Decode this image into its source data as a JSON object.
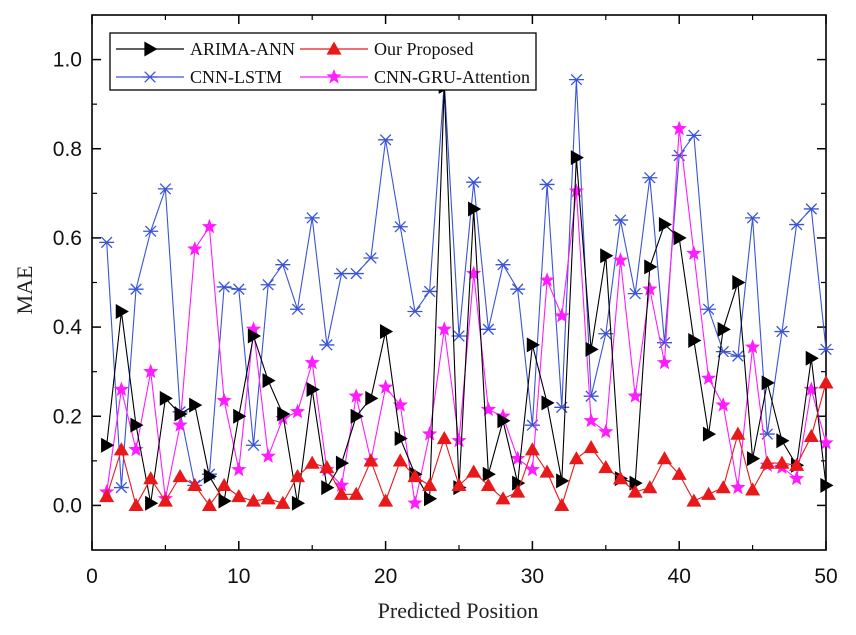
{
  "chart_data": {
    "type": "line",
    "title": "",
    "xlabel": "Predicted Position",
    "ylabel": "MAE",
    "xlim": [
      0,
      50
    ],
    "ylim": [
      -0.1,
      1.1
    ],
    "x_ticks": [
      0,
      10,
      20,
      30,
      40,
      50
    ],
    "x_tick_labels": [
      "0",
      "10",
      "20",
      "30",
      "40",
      "50"
    ],
    "y_ticks": [
      0.0,
      0.2,
      0.4,
      0.6,
      0.8,
      1.0
    ],
    "y_tick_labels": [
      "0.0",
      "0.2",
      "0.4",
      "0.6",
      "0.8",
      "1.0"
    ],
    "grid": false,
    "legend_position": "top-left",
    "x": [
      1,
      2,
      3,
      4,
      5,
      6,
      7,
      8,
      9,
      10,
      11,
      12,
      13,
      14,
      15,
      16,
      17,
      18,
      19,
      20,
      21,
      22,
      23,
      24,
      25,
      26,
      27,
      28,
      29,
      30,
      31,
      32,
      33,
      34,
      35,
      36,
      37,
      38,
      39,
      40,
      41,
      42,
      43,
      44,
      45,
      46,
      47,
      48,
      49,
      50
    ],
    "series": [
      {
        "name": "ARIMA-ANN",
        "color": "#000000",
        "marker": "triangle-right",
        "values": [
          0.135,
          0.435,
          0.18,
          0.005,
          0.24,
          0.205,
          0.225,
          0.065,
          0.01,
          0.2,
          0.38,
          0.28,
          0.205,
          0.005,
          0.26,
          0.04,
          0.095,
          0.2,
          0.24,
          0.39,
          0.15,
          0.07,
          0.015,
          0.94,
          0.04,
          0.665,
          0.07,
          0.19,
          0.05,
          0.36,
          0.23,
          0.055,
          0.78,
          0.35,
          0.56,
          0.06,
          0.05,
          0.535,
          0.63,
          0.6,
          0.37,
          0.16,
          0.395,
          0.5,
          0.105,
          0.275,
          0.145,
          0.09,
          0.33,
          0.045
        ]
      },
      {
        "name": "Our Proposed",
        "color": "#e8191a",
        "marker": "triangle-up",
        "values": [
          0.02,
          0.125,
          0.0,
          0.06,
          0.01,
          0.065,
          0.045,
          0.0,
          0.045,
          0.02,
          0.01,
          0.015,
          0.005,
          0.065,
          0.095,
          0.085,
          0.025,
          0.025,
          0.1,
          0.01,
          0.1,
          0.065,
          0.045,
          0.15,
          0.045,
          0.075,
          0.045,
          0.015,
          0.03,
          0.125,
          0.075,
          0.0,
          0.105,
          0.13,
          0.085,
          0.06,
          0.03,
          0.04,
          0.105,
          0.07,
          0.01,
          0.025,
          0.04,
          0.16,
          0.035,
          0.095,
          0.095,
          0.09,
          0.155,
          0.275
        ]
      },
      {
        "name": "CNN-LSTM",
        "color": "#3a54d8",
        "marker": "asterisk",
        "values": [
          0.59,
          0.04,
          0.485,
          0.615,
          0.71,
          0.21,
          0.045,
          0.07,
          0.49,
          0.485,
          0.135,
          0.495,
          0.54,
          0.44,
          0.645,
          0.36,
          0.52,
          0.52,
          0.555,
          0.82,
          0.625,
          0.435,
          0.48,
          0.95,
          0.38,
          0.725,
          0.395,
          0.54,
          0.485,
          0.18,
          0.72,
          0.22,
          0.955,
          0.245,
          0.385,
          0.64,
          0.475,
          0.735,
          0.365,
          0.785,
          0.83,
          0.44,
          0.345,
          0.335,
          0.645,
          0.16,
          0.39,
          0.63,
          0.665,
          0.35
        ]
      },
      {
        "name": "CNN-GRU-Attention",
        "color": "#ff1cff",
        "marker": "star",
        "values": [
          0.03,
          0.26,
          0.125,
          0.3,
          0.015,
          0.18,
          0.575,
          0.625,
          0.235,
          0.08,
          0.395,
          0.11,
          0.195,
          0.21,
          0.32,
          0.08,
          0.045,
          0.245,
          0.1,
          0.265,
          0.225,
          0.005,
          0.16,
          0.395,
          0.145,
          0.52,
          0.215,
          0.2,
          0.105,
          0.08,
          0.505,
          0.425,
          0.705,
          0.19,
          0.165,
          0.55,
          0.245,
          0.485,
          0.32,
          0.845,
          0.565,
          0.285,
          0.225,
          0.04,
          0.355,
          0.09,
          0.085,
          0.06,
          0.26,
          0.14
        ]
      }
    ]
  }
}
